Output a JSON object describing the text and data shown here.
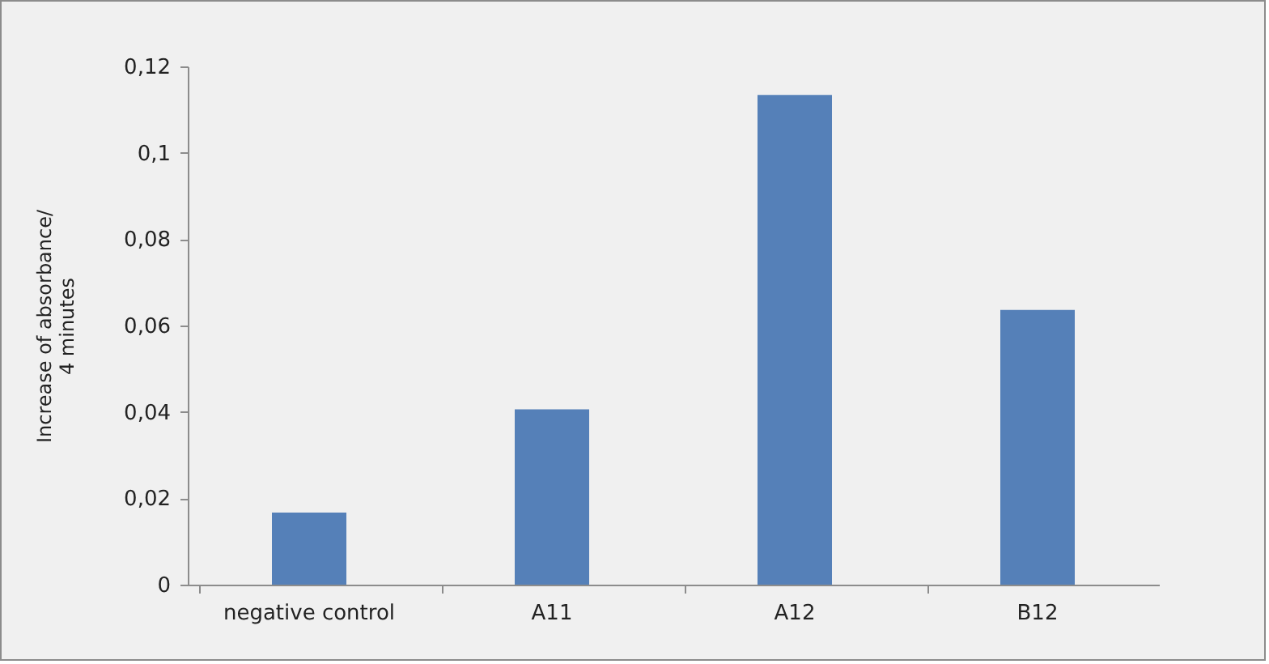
{
  "chart_data": {
    "type": "bar",
    "ylabel": "Increase of absorbance/\n4 minutes",
    "categories": [
      "negative control",
      "A11",
      "A12",
      "B12"
    ],
    "values": [
      0.0167,
      0.0406,
      0.1134,
      0.0636
    ],
    "color": "#5580b8",
    "ylim": [
      0,
      0.12
    ],
    "yticks": [
      0,
      {
        "value": 0.02,
        "label": "0,02"
      },
      {
        "value": 0.04,
        "label": "0,04"
      },
      {
        "value": 0.06,
        "label": "0,06"
      },
      {
        "value": 0.08,
        "label": "0,08"
      },
      {
        "value": 0.1,
        "label": "0,1"
      },
      {
        "value": 0.12,
        "label": "0,12"
      }
    ],
    "grid": false
  }
}
